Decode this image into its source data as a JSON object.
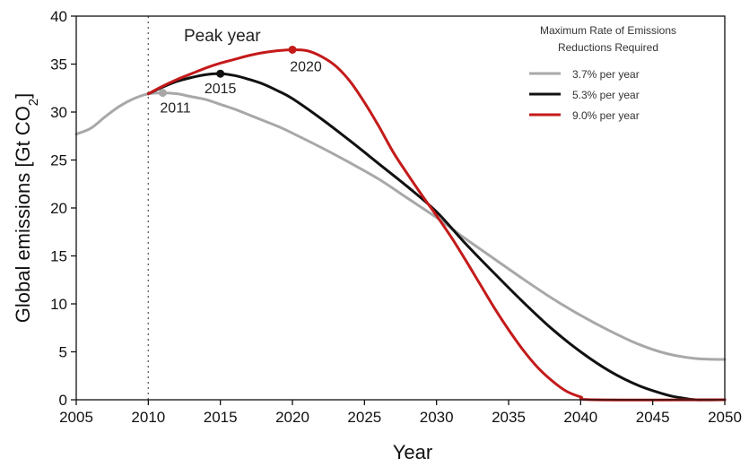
{
  "chart_data": {
    "type": "line",
    "xlabel": "Year",
    "ylabel": "Global emissions [Gt CO",
    "ylabel_sub": "2",
    "ylabel_end": "]",
    "xlim": [
      2005,
      2050
    ],
    "ylim": [
      0,
      40
    ],
    "x_ticks": [
      "2005",
      "2010",
      "2015",
      "2020",
      "2025",
      "2030",
      "2035",
      "2040",
      "2045",
      "2050"
    ],
    "y_ticks": [
      "0",
      "5",
      "10",
      "15",
      "20",
      "25",
      "30",
      "35",
      "40"
    ],
    "grid": false,
    "legend": {
      "title_line1": "Maximum Rate of Emissions",
      "title_line2": "Reductions Required",
      "placement": "top-right"
    },
    "vline": {
      "x": 2010,
      "label": "Peak year"
    },
    "series": [
      {
        "name": "3.7% per year",
        "color": "#a8a8a8",
        "peak": {
          "x": 2011,
          "y": 32.0,
          "label": "2011"
        },
        "points": [
          [
            2005,
            27.7
          ],
          [
            2006,
            28.3
          ],
          [
            2007,
            29.5
          ],
          [
            2008,
            30.6
          ],
          [
            2009,
            31.4
          ],
          [
            2010,
            31.9
          ],
          [
            2011,
            32.0
          ],
          [
            2012,
            31.9
          ],
          [
            2013,
            31.6
          ],
          [
            2014,
            31.3
          ],
          [
            2015,
            30.8
          ],
          [
            2016,
            30.3
          ],
          [
            2017,
            29.7
          ],
          [
            2018,
            29.1
          ],
          [
            2019,
            28.5
          ],
          [
            2020,
            27.8
          ],
          [
            2022,
            26.3
          ],
          [
            2024,
            24.7
          ],
          [
            2026,
            23.0
          ],
          [
            2028,
            21.0
          ],
          [
            2030,
            19.0
          ],
          [
            2032,
            16.8
          ],
          [
            2034,
            14.7
          ],
          [
            2036,
            12.6
          ],
          [
            2038,
            10.6
          ],
          [
            2040,
            8.8
          ],
          [
            2042,
            7.2
          ],
          [
            2044,
            5.8
          ],
          [
            2046,
            4.8
          ],
          [
            2048,
            4.3
          ],
          [
            2050,
            4.2
          ]
        ]
      },
      {
        "name": "5.3% per year",
        "color": "#111111",
        "peak": {
          "x": 2015,
          "y": 34.0,
          "label": "2015"
        },
        "points": [
          [
            2010,
            31.9
          ],
          [
            2011,
            32.6
          ],
          [
            2012,
            33.2
          ],
          [
            2013,
            33.6
          ],
          [
            2014,
            33.9
          ],
          [
            2015,
            34.0
          ],
          [
            2016,
            33.8
          ],
          [
            2017,
            33.4
          ],
          [
            2018,
            32.9
          ],
          [
            2019,
            32.2
          ],
          [
            2020,
            31.4
          ],
          [
            2022,
            29.3
          ],
          [
            2024,
            27.0
          ],
          [
            2026,
            24.6
          ],
          [
            2028,
            22.2
          ],
          [
            2030,
            19.6
          ],
          [
            2032,
            16.3
          ],
          [
            2034,
            13.2
          ],
          [
            2036,
            10.2
          ],
          [
            2038,
            7.4
          ],
          [
            2040,
            5.0
          ],
          [
            2042,
            3.0
          ],
          [
            2044,
            1.5
          ],
          [
            2046,
            0.5
          ],
          [
            2047,
            0.2
          ],
          [
            2048,
            0.0
          ],
          [
            2050,
            0.0
          ]
        ]
      },
      {
        "name": "9.0% per year",
        "color": "#c41a1a",
        "peak": {
          "x": 2020,
          "y": 36.5,
          "label": "2020"
        },
        "points": [
          [
            2010,
            31.9
          ],
          [
            2011,
            32.7
          ],
          [
            2012,
            33.4
          ],
          [
            2013,
            34.0
          ],
          [
            2014,
            34.6
          ],
          [
            2015,
            35.1
          ],
          [
            2016,
            35.5
          ],
          [
            2017,
            35.9
          ],
          [
            2018,
            36.2
          ],
          [
            2019,
            36.4
          ],
          [
            2020,
            36.5
          ],
          [
            2021,
            36.4
          ],
          [
            2022,
            35.8
          ],
          [
            2023,
            34.8
          ],
          [
            2024,
            33.2
          ],
          [
            2025,
            31.0
          ],
          [
            2026,
            28.5
          ],
          [
            2027,
            25.8
          ],
          [
            2028,
            23.5
          ],
          [
            2029,
            21.3
          ],
          [
            2030,
            19.2
          ],
          [
            2031,
            17.0
          ],
          [
            2032,
            14.6
          ],
          [
            2033,
            12.1
          ],
          [
            2034,
            9.6
          ],
          [
            2035,
            7.3
          ],
          [
            2036,
            5.2
          ],
          [
            2037,
            3.4
          ],
          [
            2038,
            2.0
          ],
          [
            2039,
            0.9
          ],
          [
            2040,
            0.3
          ],
          [
            2041,
            0.0
          ],
          [
            2050,
            0.0
          ]
        ]
      }
    ]
  }
}
